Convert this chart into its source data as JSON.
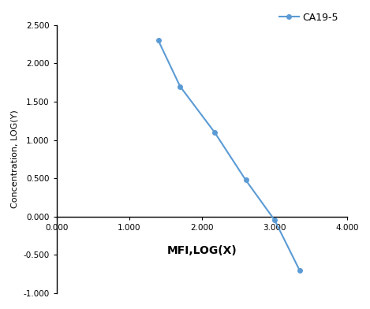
{
  "x": [
    1.398,
    1.699,
    2.176,
    2.602,
    3.0,
    3.342
  ],
  "y": [
    2.301,
    1.699,
    1.097,
    0.477,
    -0.046,
    -0.699
  ],
  "line_color": "#5b9bd5",
  "marker_color": "#5b9bd5",
  "marker_style": "o",
  "marker_size": 4,
  "line_width": 1.5,
  "label": "CA19-5",
  "xlabel": "MFI,LOG(X)",
  "ylabel": "Concentration, LOG(Y)",
  "xlim": [
    0.0,
    4.0
  ],
  "ylim": [
    -1.0,
    2.5
  ],
  "xticks": [
    0.0,
    1.0,
    2.0,
    3.0,
    4.0
  ],
  "yticks": [
    -1.0,
    -0.5,
    0.0,
    0.5,
    1.0,
    1.5,
    2.0,
    2.5
  ],
  "xlabel_fontsize": 10,
  "ylabel_fontsize": 8,
  "tick_label_fontsize": 7.5,
  "legend_fontsize": 9,
  "background_color": "#ffffff"
}
